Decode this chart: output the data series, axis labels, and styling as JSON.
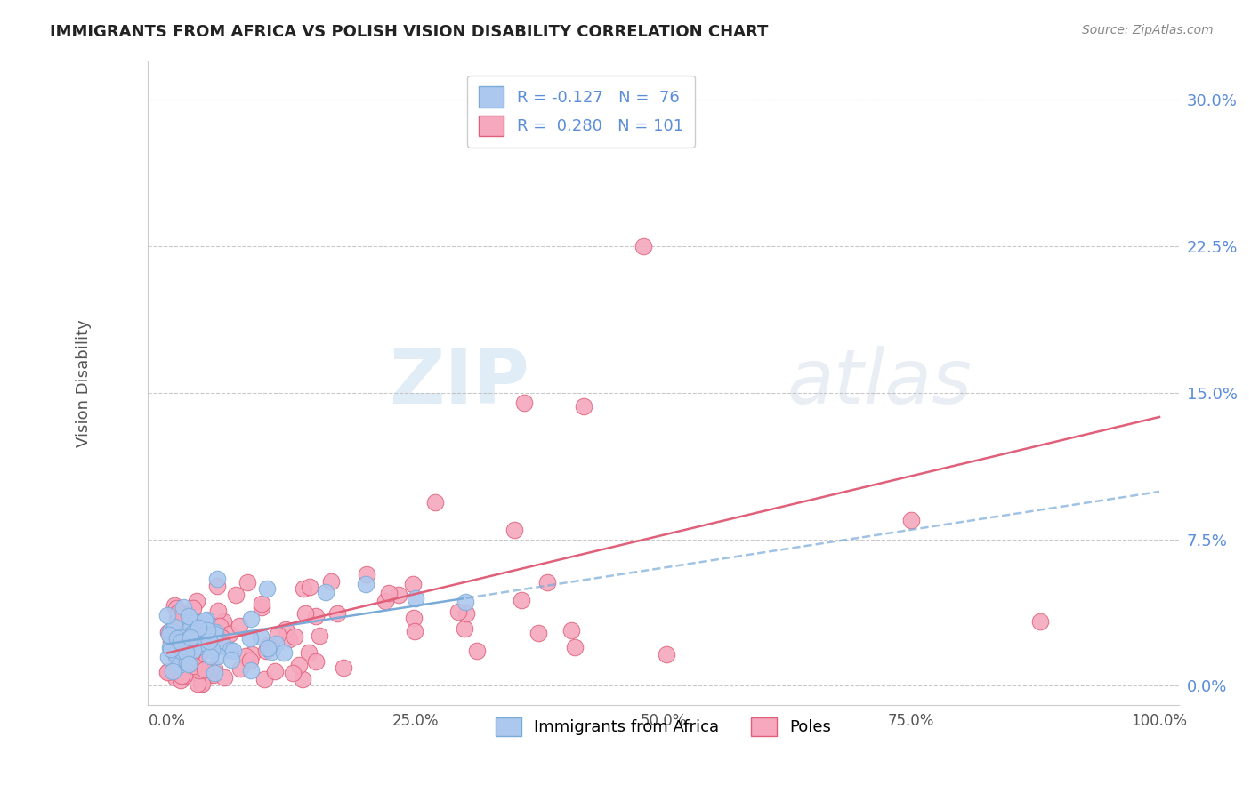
{
  "title": "IMMIGRANTS FROM AFRICA VS POLISH VISION DISABILITY CORRELATION CHART",
  "source": "Source: ZipAtlas.com",
  "ylabel": "Vision Disability",
  "series": [
    {
      "name": "Immigrants from Africa",
      "R": -0.127,
      "N": 76,
      "color": "#adc8ee",
      "edge_color": "#7aaad8",
      "line_color": "#7aaad8",
      "line_dash": "-"
    },
    {
      "name": "Poles",
      "R": 0.28,
      "N": 101,
      "color": "#f5a8be",
      "edge_color": "#e0607a",
      "line_color": "#e0607a",
      "line_dash": "-"
    }
  ],
  "xlim": [
    -0.02,
    1.02
  ],
  "ylim": [
    -0.01,
    0.32
  ],
  "yticks": [
    0.0,
    0.075,
    0.15,
    0.225,
    0.3
  ],
  "ytick_labels": [
    "0.0%",
    "7.5%",
    "15.0%",
    "22.5%",
    "30.0%"
  ],
  "xticks": [
    0.0,
    0.25,
    0.5,
    0.75,
    1.0
  ],
  "xtick_labels": [
    "0.0%",
    "25.0%",
    "50.0%",
    "75.0%",
    "100.0%"
  ],
  "grid_color": "#bbbbbb",
  "bg_color": "#ffffff",
  "title_color": "#222222",
  "source_color": "#888888",
  "ylabel_color": "#555555",
  "yaxis_tick_color": "#5b8dd9",
  "xaxis_tick_color": "#555555",
  "legend_text_black": "#333333",
  "legend_text_blue": "#5b8dd9",
  "watermark_color": "#ddeeff",
  "watermark_zip_color": "#cce0f0",
  "watermark_atlas_color": "#d8d8e8"
}
